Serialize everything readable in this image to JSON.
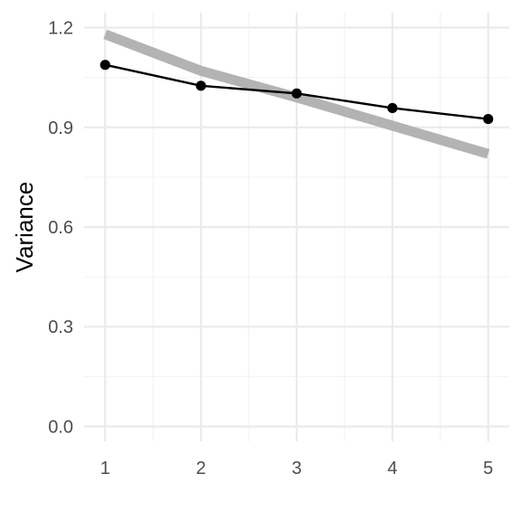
{
  "chart_data": {
    "type": "line",
    "title": "",
    "xlabel": "",
    "ylabel": "Variance",
    "x": [
      1,
      2,
      3,
      4,
      5
    ],
    "xlim": [
      0.78,
      5.22
    ],
    "ylim": [
      -0.045,
      1.245
    ],
    "xticks": [
      1,
      2,
      3,
      4,
      5
    ],
    "xtick_labels": [
      "1",
      "2",
      "3",
      "4",
      "5"
    ],
    "yticks": [
      0,
      0.3,
      0.6,
      0.9,
      1.2
    ],
    "ytick_labels": [
      "0.0",
      "0.3",
      "0.6",
      "0.9",
      "1.2"
    ],
    "grid": true,
    "legend": "none",
    "series": [
      {
        "role": "reference",
        "style": "thick-line",
        "color": "#b3b3b3",
        "values": [
          1.18,
          1.07,
          0.99,
          0.905,
          0.82
        ]
      },
      {
        "role": "observed",
        "style": "line-with-points",
        "color": "#000000",
        "values": [
          1.088,
          1.025,
          1.002,
          0.958,
          0.925
        ]
      }
    ]
  }
}
